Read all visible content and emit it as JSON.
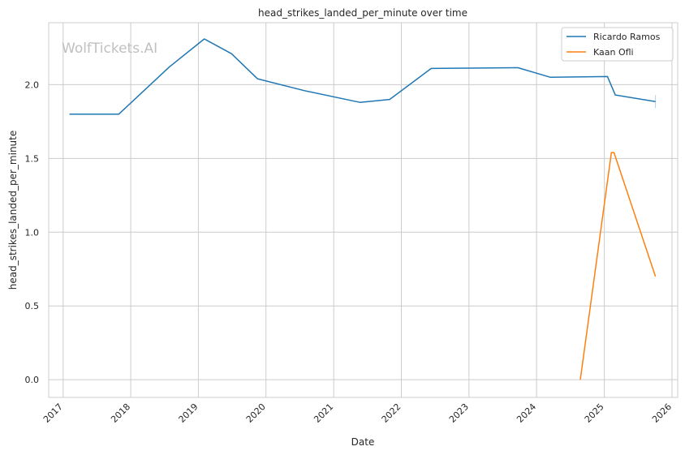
{
  "chart_data": {
    "type": "line",
    "title": "head_strikes_landed_per_minute over time",
    "xlabel": "Date",
    "ylabel": "head_strikes_landed_per_minute",
    "watermark": "WolfTickets.AI",
    "xlim": [
      "2016-10-15",
      "2026-02-01"
    ],
    "ylim": [
      -0.12,
      2.42
    ],
    "x_ticks": [
      "2017",
      "2018",
      "2019",
      "2020",
      "2021",
      "2022",
      "2023",
      "2024",
      "2025",
      "2026"
    ],
    "y_ticks": [
      "0.0",
      "0.5",
      "1.0",
      "1.5",
      "2.0"
    ],
    "grid": true,
    "legend_position": "upper right",
    "series": [
      {
        "name": "Ricardo Ramos",
        "color": "#1f77b4",
        "points": [
          {
            "x": "2017-02-04",
            "y": 1.8
          },
          {
            "x": "2017-10-28",
            "y": 1.8
          },
          {
            "x": "2018-07-28",
            "y": 2.12
          },
          {
            "x": "2019-02-02",
            "y": 2.31
          },
          {
            "x": "2019-06-29",
            "y": 2.21
          },
          {
            "x": "2019-11-16",
            "y": 2.04
          },
          {
            "x": "2020-07-25",
            "y": 1.96
          },
          {
            "x": "2021-05-22",
            "y": 1.88
          },
          {
            "x": "2021-10-30",
            "y": 1.9
          },
          {
            "x": "2022-06-11",
            "y": 2.11
          },
          {
            "x": "2023-09-23",
            "y": 2.115
          },
          {
            "x": "2024-03-16",
            "y": 2.05
          },
          {
            "x": "2025-01-18",
            "y": 2.055
          },
          {
            "x": "2025-03-01",
            "y": 1.93
          },
          {
            "x": "2025-10-04",
            "y": 1.885
          }
        ]
      },
      {
        "name": "Kaan Ofli",
        "color": "#ff7f0e",
        "points": [
          {
            "x": "2024-08-24",
            "y": 0.0
          },
          {
            "x": "2025-02-08",
            "y": 1.54
          },
          {
            "x": "2025-02-22",
            "y": 1.54
          },
          {
            "x": "2025-10-04",
            "y": 0.7
          }
        ]
      }
    ]
  }
}
